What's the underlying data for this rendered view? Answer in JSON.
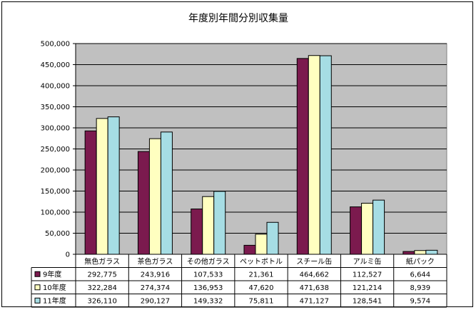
{
  "chart_data": {
    "type": "bar",
    "title": "年度別年間分別収集量",
    "categories": [
      "無色ガラス",
      "茶色ガラス",
      "その他ガラス",
      "ペットボトル",
      "スチール缶",
      "アルミ缶",
      "紙パック"
    ],
    "series": [
      {
        "name": "9年度",
        "color": "#7b1a4e",
        "values": [
          292775,
          243916,
          107533,
          21361,
          464662,
          112527,
          6644
        ],
        "labels": [
          "292,775",
          "243,916",
          "107,533",
          "21,361",
          "464,662",
          "112,527",
          "6,644"
        ]
      },
      {
        "name": "10年度",
        "color": "#ffffc0",
        "values": [
          322284,
          274374,
          136953,
          47620,
          471638,
          121214,
          8939
        ],
        "labels": [
          "322,284",
          "274,374",
          "136,953",
          "47,620",
          "471,638",
          "121,214",
          "8,939"
        ]
      },
      {
        "name": "11年度",
        "color": "#a6dde4",
        "values": [
          326110,
          290127,
          149332,
          75811,
          471127,
          128541,
          9574
        ],
        "labels": [
          "326,110",
          "290,127",
          "149,332",
          "75,811",
          "471,127",
          "128,541",
          "9,574"
        ]
      }
    ],
    "ylim": [
      0,
      500000
    ],
    "yticks": [
      "0",
      "50,000",
      "100,000",
      "150,000",
      "200,000",
      "250,000",
      "300,000",
      "350,000",
      "400,000",
      "450,000",
      "500,000"
    ],
    "grid": true,
    "legend": "data-table",
    "plot_background": "#c0c0c0"
  }
}
